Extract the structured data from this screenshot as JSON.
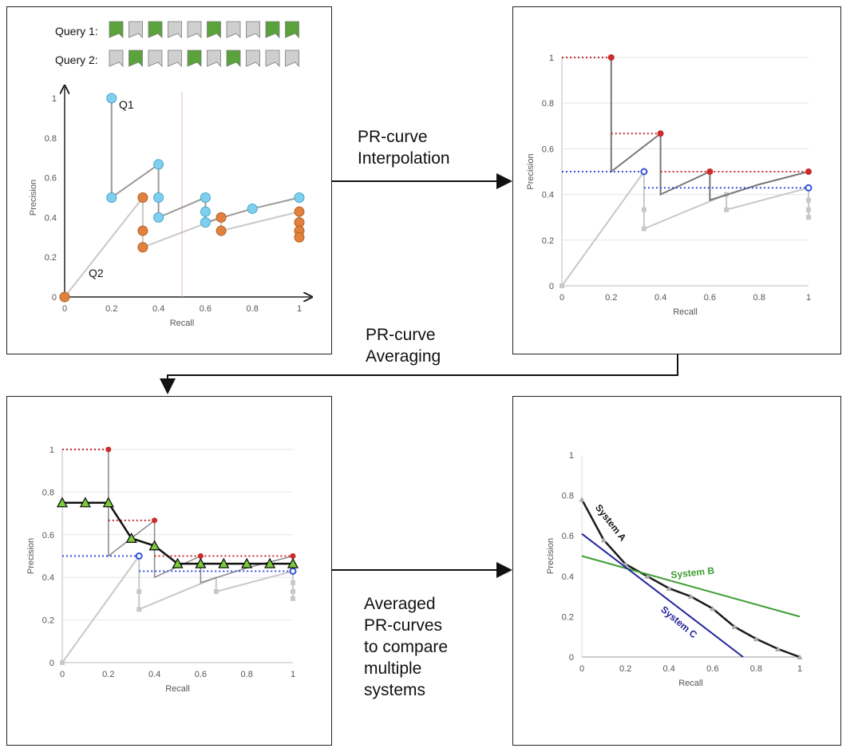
{
  "colors": {
    "relevant": "#5aa33a",
    "nonrelevant": "#cfcfcf",
    "q1": "#7fd0ef",
    "q2": "#e0813f",
    "interp_red": "#cc2b2b",
    "interp_blue": "#3352d6",
    "avg_green": "#7ccb3a",
    "sysA": "#1a1a1a",
    "sysB": "#3d9d31",
    "sysC": "#23239b"
  },
  "captions": {
    "interpolation": [
      "PR-curve",
      "Interpolation"
    ],
    "averaging": [
      "PR-curve",
      "Averaging"
    ],
    "compare": [
      "Averaged",
      "PR-curves",
      "to compare",
      "multiple",
      "systems"
    ]
  },
  "queries": [
    {
      "label": "Query 1:",
      "docs": [
        1,
        0,
        1,
        0,
        0,
        1,
        0,
        0,
        1,
        1
      ]
    },
    {
      "label": "Query 2:",
      "docs": [
        0,
        1,
        0,
        0,
        1,
        0,
        1,
        0,
        0,
        0
      ]
    }
  ],
  "chart_data": [
    {
      "type": "scatter",
      "xlabel": "Recall",
      "ylabel": "Precision",
      "xlim": [
        0,
        1
      ],
      "ylim": [
        0,
        1
      ],
      "xticks": [
        "0",
        "0.2",
        "0.4",
        "0.6",
        "0.8",
        "1"
      ],
      "yticks": [
        "0",
        "0.2",
        "0.4",
        "0.6",
        "0.8",
        "1"
      ],
      "annotations": [
        "Q1",
        "Q2"
      ],
      "series": [
        {
          "name": "Q1",
          "x": [
            0.2,
            0.2,
            0.4,
            0.4,
            0.4,
            0.6,
            0.6,
            0.6,
            0.8,
            1.0
          ],
          "y": [
            1.0,
            0.5,
            0.667,
            0.5,
            0.4,
            0.5,
            0.429,
            0.375,
            0.444,
            0.5
          ]
        },
        {
          "name": "Q2",
          "x": [
            0.0,
            0.333,
            0.333,
            0.333,
            0.667,
            0.667,
            1.0,
            1.0,
            1.0,
            1.0
          ],
          "y": [
            0.0,
            0.5,
            0.333,
            0.25,
            0.4,
            0.333,
            0.429,
            0.375,
            0.333,
            0.3
          ]
        }
      ]
    },
    {
      "type": "line",
      "xlabel": "Recall",
      "ylabel": "Precision",
      "xlim": [
        0,
        1
      ],
      "ylim": [
        0,
        1
      ],
      "xticks": [
        "0",
        "0.2",
        "0.4",
        "0.6",
        "0.8",
        "1"
      ],
      "yticks": [
        "0",
        "0.2",
        "0.4",
        "0.6",
        "0.8",
        "1"
      ],
      "interpolated_q1": [
        [
          0.2,
          1.0
        ],
        [
          0.4,
          0.667
        ],
        [
          0.6,
          0.5
        ],
        [
          1.0,
          0.5
        ]
      ],
      "interpolated_q2": [
        [
          0.333,
          0.5
        ],
        [
          1.0,
          0.429
        ]
      ]
    },
    {
      "type": "line",
      "xlabel": "Recall",
      "ylabel": "Precision",
      "xlim": [
        0,
        1
      ],
      "ylim": [
        0,
        1
      ],
      "xticks": [
        "0",
        "0.2",
        "0.4",
        "0.6",
        "0.8",
        "1"
      ],
      "yticks": [
        "0",
        "0.2",
        "0.4",
        "0.6",
        "0.8",
        "1"
      ],
      "averaged": {
        "x": [
          0,
          0.1,
          0.2,
          0.3,
          0.4,
          0.5,
          0.6,
          0.7,
          0.8,
          0.9,
          1.0
        ],
        "y": [
          0.75,
          0.75,
          0.75,
          0.583,
          0.548,
          0.464,
          0.464,
          0.464,
          0.464,
          0.464,
          0.464
        ]
      }
    },
    {
      "type": "line",
      "xlabel": "Recall",
      "ylabel": "Precision",
      "xlim": [
        0,
        1
      ],
      "ylim": [
        0,
        1
      ],
      "xticks": [
        "0",
        "0.2",
        "0.4",
        "0.6",
        "0.8",
        "1"
      ],
      "yticks": [
        "0",
        "0.2",
        "0.4",
        "0.6",
        "0.8",
        "1"
      ],
      "series": [
        {
          "name": "System A",
          "x": [
            0,
            0.1,
            0.2,
            0.3,
            0.4,
            0.5,
            0.6,
            0.7,
            0.8,
            0.9,
            1.0
          ],
          "y": [
            0.78,
            0.58,
            0.46,
            0.4,
            0.34,
            0.3,
            0.24,
            0.15,
            0.09,
            0.04,
            0.0
          ]
        },
        {
          "name": "System B",
          "x": [
            0,
            1.0
          ],
          "y": [
            0.5,
            0.2
          ]
        },
        {
          "name": "System C",
          "x": [
            0,
            0.74
          ],
          "y": [
            0.61,
            0.0
          ]
        }
      ]
    }
  ]
}
